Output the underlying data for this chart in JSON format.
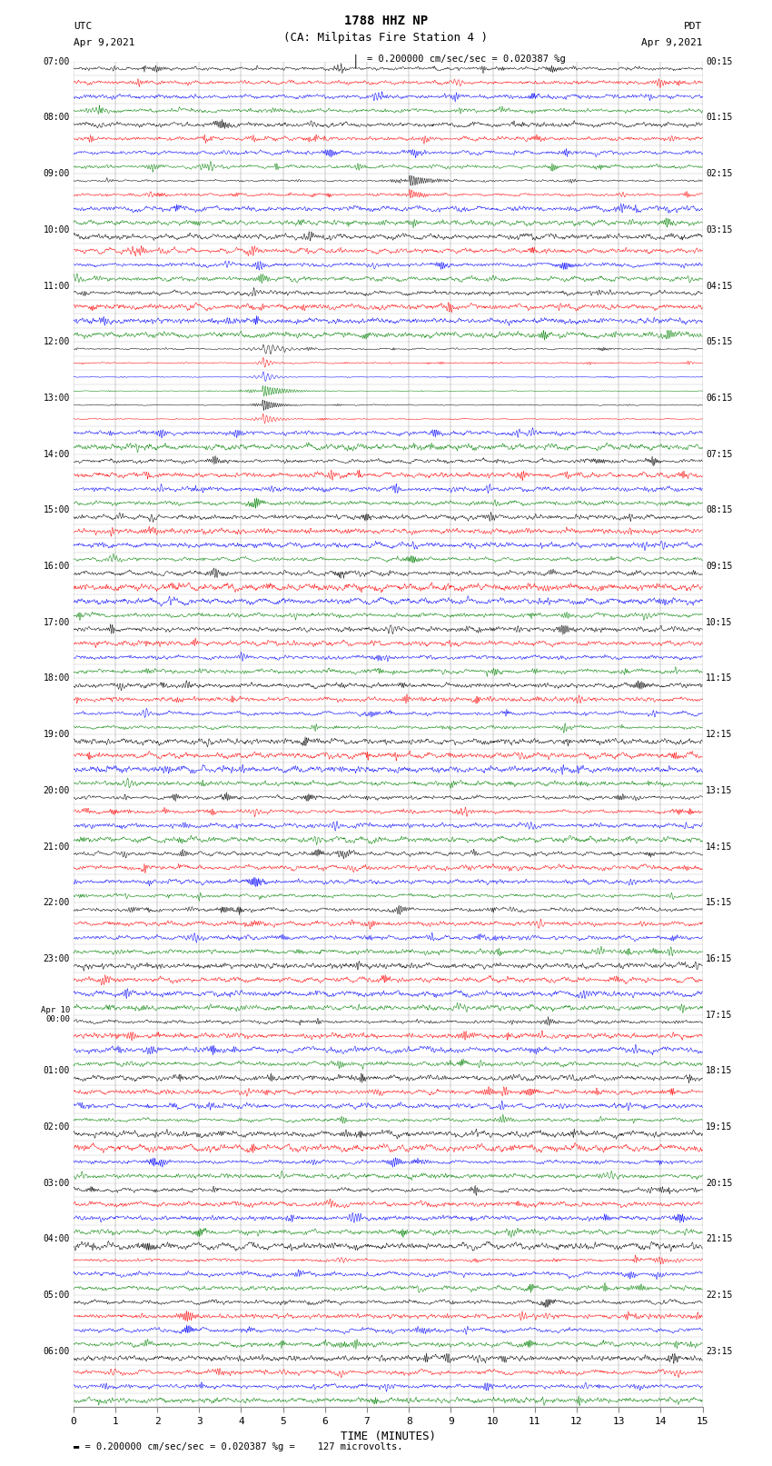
{
  "title_line1": "1788 HHZ NP",
  "title_line2": "(CA: Milpitas Fire Station 4 )",
  "utc_label": "UTC",
  "pdt_label": "PDT",
  "date_left": "Apr 9,2021",
  "date_right": "Apr 9,2021",
  "scale_text": "= 0.200000 cm/sec/sec = 0.020387 %g",
  "bottom_text": "= 0.200000 cm/sec/sec = 0.020387 %g =    127 microvolts.",
  "xlabel": "TIME (MINUTES)",
  "bg_color": "#ffffff",
  "trace_colors": [
    "#000000",
    "#ff0000",
    "#0000ff",
    "#008000"
  ],
  "n_rows": 96,
  "fig_width": 8.5,
  "fig_height": 16.13,
  "dpi": 100,
  "xmin": 0,
  "xmax": 15,
  "xticks": [
    0,
    1,
    2,
    3,
    4,
    5,
    6,
    7,
    8,
    9,
    10,
    11,
    12,
    13,
    14,
    15
  ],
  "left_times_utc": [
    "07:00",
    "",
    "",
    "",
    "08:00",
    "",
    "",
    "",
    "09:00",
    "",
    "",
    "",
    "10:00",
    "",
    "",
    "",
    "11:00",
    "",
    "",
    "",
    "12:00",
    "",
    "",
    "",
    "13:00",
    "",
    "",
    "",
    "14:00",
    "",
    "",
    "",
    "15:00",
    "",
    "",
    "",
    "16:00",
    "",
    "",
    "",
    "17:00",
    "",
    "",
    "",
    "18:00",
    "",
    "",
    "",
    "19:00",
    "",
    "",
    "",
    "20:00",
    "",
    "",
    "",
    "21:00",
    "",
    "",
    "",
    "22:00",
    "",
    "",
    "",
    "23:00",
    "",
    "",
    "",
    "Apr 10\n00:00",
    "",
    "",
    "",
    "01:00",
    "",
    "",
    "",
    "02:00",
    "",
    "",
    "",
    "03:00",
    "",
    "",
    "",
    "04:00",
    "",
    "",
    "",
    "05:00",
    "",
    "",
    "",
    "06:00",
    "",
    "",
    ""
  ],
  "right_times_pdt": [
    "00:15",
    "",
    "",
    "",
    "01:15",
    "",
    "",
    "",
    "02:15",
    "",
    "",
    "",
    "03:15",
    "",
    "",
    "",
    "04:15",
    "",
    "",
    "",
    "05:15",
    "",
    "",
    "",
    "06:15",
    "",
    "",
    "",
    "07:15",
    "",
    "",
    "",
    "08:15",
    "",
    "",
    "",
    "09:15",
    "",
    "",
    "",
    "10:15",
    "",
    "",
    "",
    "11:15",
    "",
    "",
    "",
    "12:15",
    "",
    "",
    "",
    "13:15",
    "",
    "",
    "",
    "14:15",
    "",
    "",
    "",
    "15:15",
    "",
    "",
    "",
    "16:15",
    "",
    "",
    "",
    "17:15",
    "",
    "",
    "",
    "18:15",
    "",
    "",
    "",
    "19:15",
    "",
    "",
    "",
    "20:15",
    "",
    "",
    "",
    "21:15",
    "",
    "",
    "",
    "22:15",
    "",
    "",
    "",
    "23:15",
    "",
    "",
    ""
  ]
}
